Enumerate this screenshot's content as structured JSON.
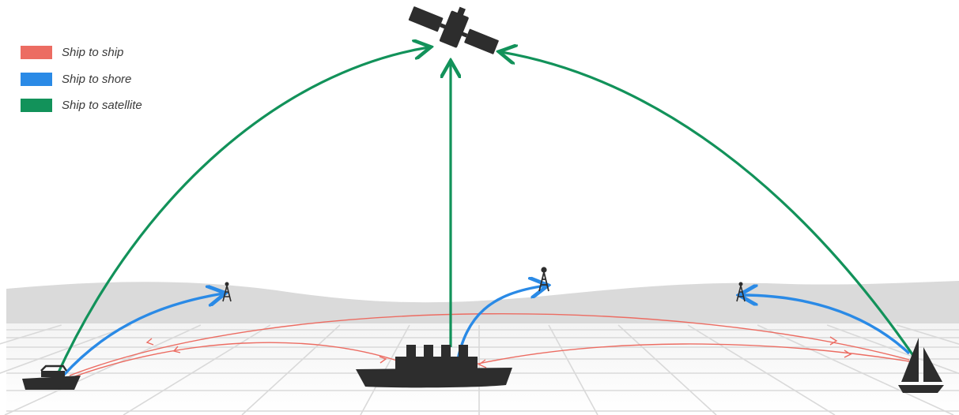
{
  "legend": {
    "items": [
      {
        "label": "Ship to ship",
        "color": "#ec6c62"
      },
      {
        "label": "Ship to shore",
        "color": "#2a8ae6"
      },
      {
        "label": "Ship to satellite",
        "color": "#12925a"
      }
    ]
  },
  "colors": {
    "ship_to_ship": "#ec6c62",
    "ship_to_shore": "#2a8ae6",
    "ship_to_satellite": "#12925a",
    "vessel": "#2d2d2d",
    "shore_band": "#dadada",
    "grid": "#d9d9d9"
  },
  "nodes": {
    "satellite": {
      "icon": "satellite-icon"
    },
    "small_boat": {
      "icon": "motorboat-icon"
    },
    "cargo_ship": {
      "icon": "cargo-ship-icon"
    },
    "sailboat": {
      "icon": "sailboat-icon"
    },
    "towers": [
      "radio-tower-icon",
      "radio-tower-icon",
      "radio-tower-icon"
    ]
  }
}
